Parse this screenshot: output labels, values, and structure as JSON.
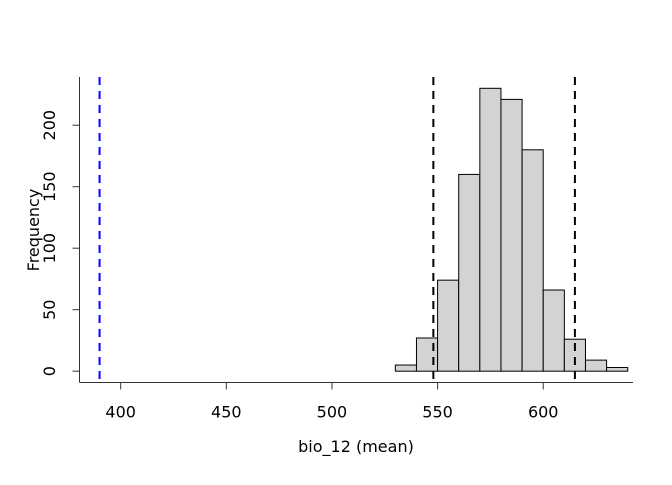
{
  "chart_data": {
    "type": "bar",
    "subtype": "histogram",
    "xlabel": "bio_12 (mean)",
    "ylabel": "Frequency",
    "bin_edges": [
      530,
      540,
      550,
      560,
      570,
      580,
      590,
      600,
      610,
      620,
      630,
      640
    ],
    "counts": [
      5,
      27,
      74,
      160,
      230,
      221,
      180,
      66,
      26,
      9,
      3
    ],
    "x_ticks": [
      400,
      450,
      500,
      550,
      600
    ],
    "y_ticks": [
      0,
      50,
      100,
      150,
      200
    ],
    "xlim": [
      380.5,
      642.5
    ],
    "ylim": [
      -9.2,
      239.2
    ],
    "grid": false,
    "legend_position": "none",
    "bar_fill_color": "#d3d3d3",
    "bar_border_color": "#000000",
    "axis_color": "#333333",
    "reference_lines": [
      {
        "name": "observed-value-line",
        "x": 390,
        "color": "#0000ff",
        "style": "dashed"
      },
      {
        "name": "ci-lower-line",
        "x": 548,
        "color": "#000000",
        "style": "dashed"
      },
      {
        "name": "ci-upper-line",
        "x": 615,
        "color": "#000000",
        "style": "dashed"
      }
    ]
  }
}
